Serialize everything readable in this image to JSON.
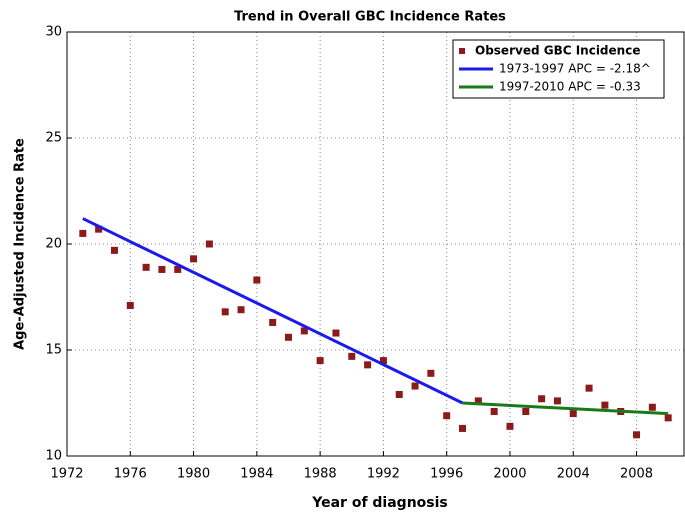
{
  "chart_data": {
    "type": "scatter",
    "title": "Trend in Overall GBC Incidence Rates",
    "x_label": "Year of diagnosis",
    "y_label": "Age-Adjusted Incidence Rate",
    "xlim": [
      1972,
      2011
    ],
    "ylim": [
      10,
      30
    ],
    "xticks": [
      1972,
      1976,
      1980,
      1984,
      1988,
      1992,
      1996,
      2000,
      2004,
      2008
    ],
    "yticks": [
      10,
      15,
      20,
      25,
      30
    ],
    "grid": true,
    "legend": "upper right",
    "series": [
      {
        "name": "Observed GBC Incidence",
        "type": "scatter",
        "color": "#8b1a1a",
        "x": [
          1973,
          1974,
          1975,
          1976,
          1977,
          1978,
          1979,
          1980,
          1981,
          1982,
          1983,
          1984,
          1985,
          1986,
          1987,
          1988,
          1989,
          1990,
          1991,
          1992,
          1993,
          1994,
          1995,
          1996,
          1997,
          1998,
          1999,
          2000,
          2001,
          2002,
          2003,
          2004,
          2005,
          2006,
          2007,
          2008,
          2009,
          2010
        ],
        "values": [
          20.5,
          20.7,
          19.7,
          17.1,
          18.9,
          18.8,
          18.8,
          19.3,
          20.0,
          16.8,
          16.9,
          18.3,
          16.3,
          15.6,
          15.9,
          14.5,
          15.8,
          14.7,
          14.3,
          14.5,
          12.9,
          13.3,
          13.9,
          11.9,
          11.3,
          12.6,
          12.1,
          11.4,
          12.1,
          12.7,
          12.6,
          12.0,
          13.2,
          12.4,
          12.1,
          11.0,
          12.3,
          11.8
        ]
      },
      {
        "name": "1973-1997 APC  = -2.18^",
        "type": "line",
        "color": "#1a1aee",
        "x": [
          1973,
          1997
        ],
        "values": [
          21.2,
          12.5
        ]
      },
      {
        "name": "1997-2010 APC  = -0.33",
        "type": "line",
        "color": "#1a7a1a",
        "x": [
          1997,
          2010
        ],
        "values": [
          12.5,
          12.0
        ]
      }
    ]
  }
}
